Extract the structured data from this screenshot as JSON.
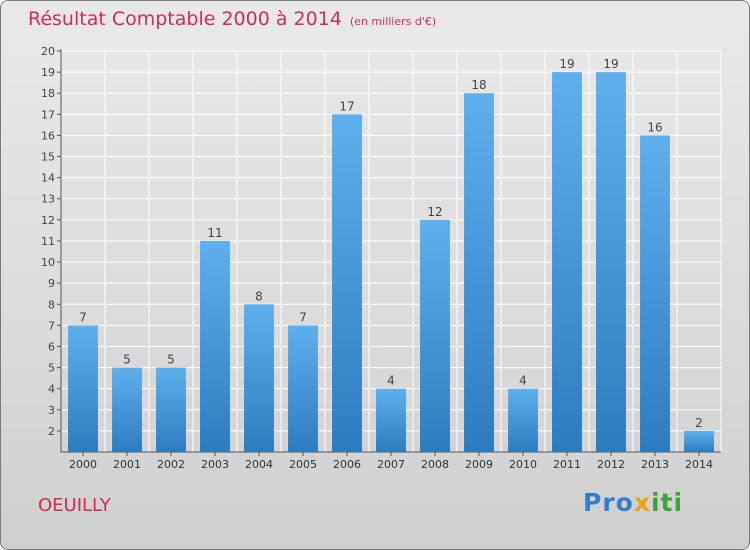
{
  "header": {
    "title": "Résultat Comptable 2000 à 2014",
    "subtitle": "(en milliers d'€)"
  },
  "footer": {
    "commune": "OEUILLY",
    "logo_text": "Proxiti"
  },
  "colors": {
    "bar_light": "#5eb0ec",
    "bar_dark": "#2c7cc0",
    "title": "#d42c54"
  },
  "chart_data": {
    "type": "bar",
    "categories": [
      "2000",
      "2001",
      "2002",
      "2003",
      "2004",
      "2005",
      "2006",
      "2007",
      "2008",
      "2009",
      "2010",
      "2011",
      "2012",
      "2013",
      "2014"
    ],
    "values": [
      7,
      5,
      5,
      11,
      8,
      7,
      17,
      4,
      12,
      18,
      4,
      19,
      19,
      16,
      2
    ],
    "title": "Résultat Comptable 2000 à 2014",
    "subtitle": "(en milliers d'€)",
    "ylim": [
      1,
      20
    ],
    "yticks": [
      2,
      3,
      4,
      5,
      6,
      7,
      8,
      9,
      10,
      11,
      12,
      13,
      14,
      15,
      16,
      17,
      18,
      19,
      20
    ],
    "grid": true,
    "data_labels": true
  }
}
